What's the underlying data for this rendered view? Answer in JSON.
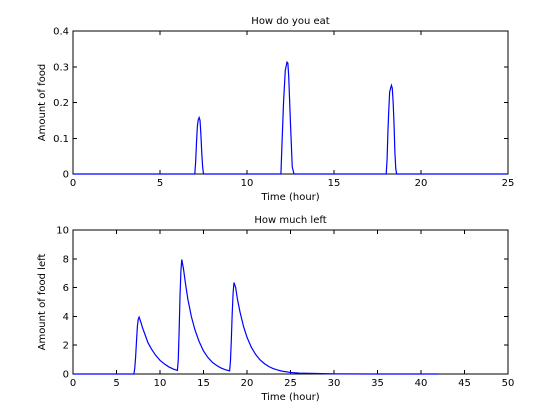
{
  "chart_data": [
    {
      "type": "line",
      "title": "How do you eat",
      "xlabel": "Time (hour)",
      "ylabel": "Amount of food",
      "xlim": [
        0,
        25
      ],
      "ylim": [
        0,
        0.4
      ],
      "xticks": [
        0,
        5,
        10,
        15,
        20,
        25
      ],
      "yticks": [
        0,
        0.1,
        0.2,
        0.3,
        0.4
      ],
      "xticklabels": [
        "0",
        "5",
        "10",
        "15",
        "20",
        "25"
      ],
      "yticklabels": [
        "0",
        "0.1",
        "0.2",
        "0.3",
        "0.4"
      ],
      "grid": false,
      "series": [
        {
          "color": "#0000ff",
          "x": [
            0,
            7.0,
            7.05,
            7.1,
            7.15,
            7.2,
            7.25,
            7.3,
            7.35,
            7.4,
            7.45,
            7.5,
            7.6,
            11.95,
            12.0,
            12.1,
            12.2,
            12.3,
            12.35,
            12.4,
            12.5,
            12.6,
            12.7,
            18.0,
            18.05,
            18.1,
            18.15,
            18.2,
            18.3,
            18.35,
            18.4,
            18.45,
            18.5,
            18.55,
            18.6,
            25
          ],
          "y": [
            0,
            0,
            0.035,
            0.09,
            0.135,
            0.152,
            0.158,
            0.15,
            0.11,
            0.06,
            0.02,
            0,
            0,
            0,
            0.07,
            0.2,
            0.29,
            0.313,
            0.31,
            0.27,
            0.14,
            0.02,
            0,
            0,
            0.04,
            0.12,
            0.18,
            0.23,
            0.248,
            0.24,
            0.2,
            0.14,
            0.06,
            0.015,
            0,
            0
          ]
        }
      ]
    },
    {
      "type": "line",
      "title": "How much left",
      "xlabel": "Time (hour)",
      "ylabel": "Amount of food left",
      "xlim": [
        0,
        50
      ],
      "ylim": [
        0,
        10
      ],
      "xticks": [
        0,
        5,
        10,
        15,
        20,
        25,
        30,
        35,
        40,
        45,
        50
      ],
      "yticks": [
        0,
        2,
        4,
        6,
        8,
        10
      ],
      "xticklabels": [
        "0",
        "5",
        "10",
        "15",
        "20",
        "25",
        "30",
        "35",
        "40",
        "45",
        "50"
      ],
      "yticklabels": [
        "0",
        "2",
        "4",
        "6",
        "8",
        "10"
      ],
      "grid": false,
      "series": [
        {
          "color": "#0000ff",
          "x": [
            0,
            7.0,
            7.1,
            7.2,
            7.3,
            7.4,
            7.5,
            7.6,
            7.8,
            8.0,
            8.3,
            8.6,
            9.0,
            9.5,
            10.0,
            10.5,
            11.0,
            11.5,
            12.0,
            12.1,
            12.2,
            12.3,
            12.4,
            12.5,
            12.7,
            12.9,
            13.2,
            13.6,
            14.0,
            14.5,
            15.0,
            15.5,
            16.0,
            16.5,
            17.0,
            17.5,
            18.0,
            18.1,
            18.2,
            18.3,
            18.4,
            18.5,
            18.7,
            18.9,
            19.2,
            19.6,
            20.0,
            20.5,
            21.0,
            21.5,
            22.0,
            22.5,
            23.0,
            23.5,
            24.0,
            25.0,
            26.0,
            30.0,
            35.0,
            40.0,
            42.0
          ],
          "y": [
            0,
            0,
            0.4,
            1.2,
            2.3,
            3.3,
            3.8,
            3.95,
            3.6,
            3.2,
            2.7,
            2.2,
            1.75,
            1.3,
            0.95,
            0.7,
            0.5,
            0.35,
            0.25,
            1.0,
            3.0,
            5.4,
            7.1,
            7.95,
            7.3,
            6.4,
            5.2,
            4.0,
            3.1,
            2.25,
            1.6,
            1.15,
            0.82,
            0.6,
            0.42,
            0.3,
            0.22,
            0.9,
            2.4,
            4.2,
            5.6,
            6.35,
            6.0,
            5.2,
            4.3,
            3.3,
            2.55,
            1.85,
            1.35,
            0.98,
            0.72,
            0.52,
            0.38,
            0.28,
            0.2,
            0.11,
            0.06,
            0.01,
            0,
            0,
            0
          ]
        }
      ]
    }
  ]
}
